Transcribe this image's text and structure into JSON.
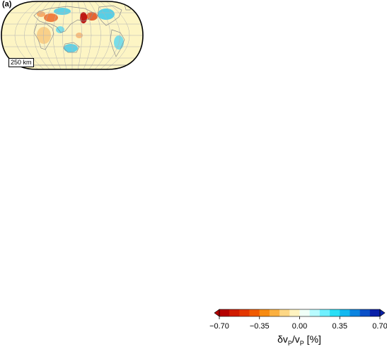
{
  "panel": {
    "label": "(a)"
  },
  "map": {
    "projection": "Robinson",
    "background_color": "#fdf5c4",
    "coastline_color": "#8c8c8c",
    "grid_color": "#b3b3b3",
    "depth_label": "250 km",
    "anomalies": [
      {
        "region": "north-atlantic",
        "sign": "negative",
        "color": "#e34a1a"
      },
      {
        "region": "east-asia",
        "sign": "negative",
        "color": "#e34a1a"
      },
      {
        "region": "western-north-america",
        "sign": "negative",
        "color": "#b80000"
      },
      {
        "region": "north-america-craton",
        "sign": "positive",
        "color": "#38c8ec"
      },
      {
        "region": "siberia",
        "sign": "positive",
        "color": "#38c8ec"
      },
      {
        "region": "india",
        "sign": "positive",
        "color": "#57d7f0"
      },
      {
        "region": "australia",
        "sign": "positive",
        "color": "#38c8ec"
      },
      {
        "region": "south-america",
        "sign": "positive",
        "color": "#57d7f0"
      },
      {
        "region": "africa",
        "sign": "mixed",
        "color": "#f7c070"
      }
    ]
  },
  "colorbar": {
    "colors": [
      "#b40000",
      "#d01b00",
      "#e33600",
      "#f05a00",
      "#f78a10",
      "#fbb040",
      "#fdd785",
      "#fff3c0",
      "#f0fff8",
      "#b8fbff",
      "#70f0ff",
      "#29dff5",
      "#11b8f0",
      "#0a84e0",
      "#0a50c8",
      "#0a20a8"
    ],
    "min": -0.7,
    "max": 0.7,
    "ticks": [
      {
        "value": -0.7,
        "label": "−0.70"
      },
      {
        "value": -0.35,
        "label": "−0.35"
      },
      {
        "value": 0.0,
        "label": "0.00"
      },
      {
        "value": 0.35,
        "label": "0.35"
      },
      {
        "value": 0.7,
        "label": "0.70"
      }
    ],
    "title_prefix": "δv",
    "title_sub1": "P",
    "title_mid": "/v",
    "title_sub2": "P",
    "title_suffix": " [%]"
  }
}
